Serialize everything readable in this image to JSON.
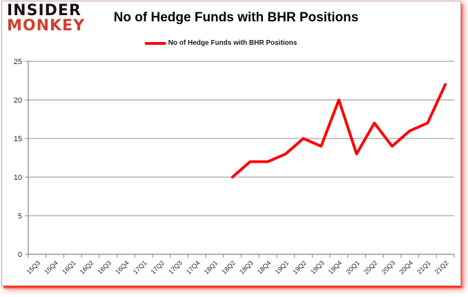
{
  "logo": {
    "line1": "INSIDER",
    "line2": "MONKEY",
    "line1_color": "#161311",
    "line2_color": "#cf3f2e"
  },
  "header": {
    "title": "No of Hedge Funds with BHR Positions"
  },
  "legend": {
    "label": "No of Hedge Funds with BHR Positions",
    "line_color": "#fe0000"
  },
  "chart_data": {
    "type": "line",
    "title": "No of Hedge Funds with BHR Positions",
    "categories": [
      "15Q3",
      "15Q4",
      "16Q1",
      "16Q2",
      "16Q3",
      "16Q4",
      "17Q1",
      "17Q2",
      "17Q3",
      "17Q4",
      "18Q1",
      "18Q2",
      "18Q3",
      "18Q4",
      "19Q1",
      "19Q2",
      "19Q3",
      "19Q4",
      "20Q1",
      "20Q2",
      "20Q3",
      "20Q4",
      "21Q1",
      "21Q2"
    ],
    "series": [
      {
        "name": "No of Hedge Funds with BHR Positions",
        "color": "#fe0000",
        "values": [
          null,
          null,
          null,
          null,
          null,
          null,
          null,
          null,
          null,
          null,
          null,
          10,
          12,
          12,
          13,
          15,
          14,
          20,
          13,
          17,
          14,
          16,
          17,
          22
        ]
      }
    ],
    "xlabel": "",
    "ylabel": "",
    "ylim": [
      0,
      25
    ],
    "yticks": [
      0,
      5,
      10,
      15,
      20,
      25
    ],
    "grid": true,
    "legend_position": "top",
    "grid_color": "#8c8c8c",
    "axis_color": "#808080",
    "label_color": "#262626"
  }
}
